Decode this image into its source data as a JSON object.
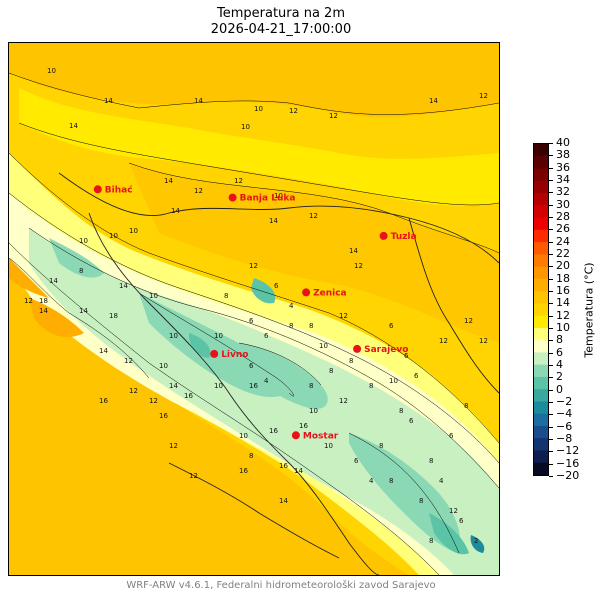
{
  "title": {
    "line1": "Temperatura na 2m",
    "line2": "2026-04-21_17:00:00"
  },
  "colorbar": {
    "label": "Temperatura (°C)",
    "ticks": [
      "40",
      "38",
      "36",
      "34",
      "32",
      "30",
      "28",
      "26",
      "24",
      "22",
      "20",
      "18",
      "16",
      "14",
      "12",
      "10",
      "8",
      "6",
      "4",
      "2",
      "0",
      "−2",
      "−4",
      "−6",
      "−8",
      "−12",
      "−16",
      "−20"
    ],
    "colors": [
      "#3a0000",
      "#5a0000",
      "#7a0000",
      "#960000",
      "#b40000",
      "#d20000",
      "#ee0000",
      "#ff2a00",
      "#ff5a00",
      "#ff7a00",
      "#ff9600",
      "#ffad00",
      "#ffc400",
      "#ffd400",
      "#ffea00",
      "#ffff7a",
      "#ffffc8",
      "#c8f0c0",
      "#8ad8b4",
      "#5cc4a6",
      "#3aa89e",
      "#1c8c9c",
      "#1a6fa0",
      "#1a4d8c",
      "#143470",
      "#0d1d4e",
      "#060a22"
    ]
  },
  "cities": [
    {
      "name": "Bihać",
      "lon": 15.87,
      "lat": 44.82
    },
    {
      "name": "Banja Luka",
      "lon": 17.19,
      "lat": 44.77
    },
    {
      "name": "Tuzla",
      "lon": 18.67,
      "lat": 44.54
    },
    {
      "name": "Zenica",
      "lon": 17.91,
      "lat": 44.2
    },
    {
      "name": "Livno",
      "lon": 17.01,
      "lat": 43.83
    },
    {
      "name": "Sarajevo",
      "lon": 18.41,
      "lat": 43.86
    },
    {
      "name": "Mostar",
      "lon": 17.81,
      "lat": 43.34
    }
  ],
  "contour_labels": [
    "10",
    "14",
    "10",
    "10",
    "12",
    "12",
    "14",
    "14",
    "12",
    "14",
    "12",
    "14",
    "14",
    "12",
    "14",
    "12",
    "14",
    "10",
    "12",
    "10",
    "10",
    "10",
    "14",
    "12",
    "12",
    "12",
    "8",
    "10",
    "14",
    "12",
    "10",
    "8",
    "6",
    "8",
    "10",
    "12",
    "10",
    "10",
    "6",
    "8",
    "14",
    "14",
    "6",
    "4",
    "8",
    "8",
    "16",
    "12",
    "18",
    "18",
    "14",
    "16",
    "10",
    "8",
    "6",
    "8",
    "6",
    "8",
    "12",
    "10",
    "10",
    "12",
    "8",
    "6",
    "4",
    "8",
    "14",
    "14",
    "10",
    "12",
    "8",
    "16",
    "16",
    "16",
    "16",
    "10",
    "8",
    "6",
    "6",
    "6",
    "6",
    "4",
    "8",
    "12",
    "12",
    "16",
    "12",
    "14",
    "16",
    "8",
    "12",
    "8",
    "2",
    "6",
    "4"
  ],
  "footer": "WRF-ARW v4.6.1, Federalni hidrometeorološki zavod Sarajevo"
}
